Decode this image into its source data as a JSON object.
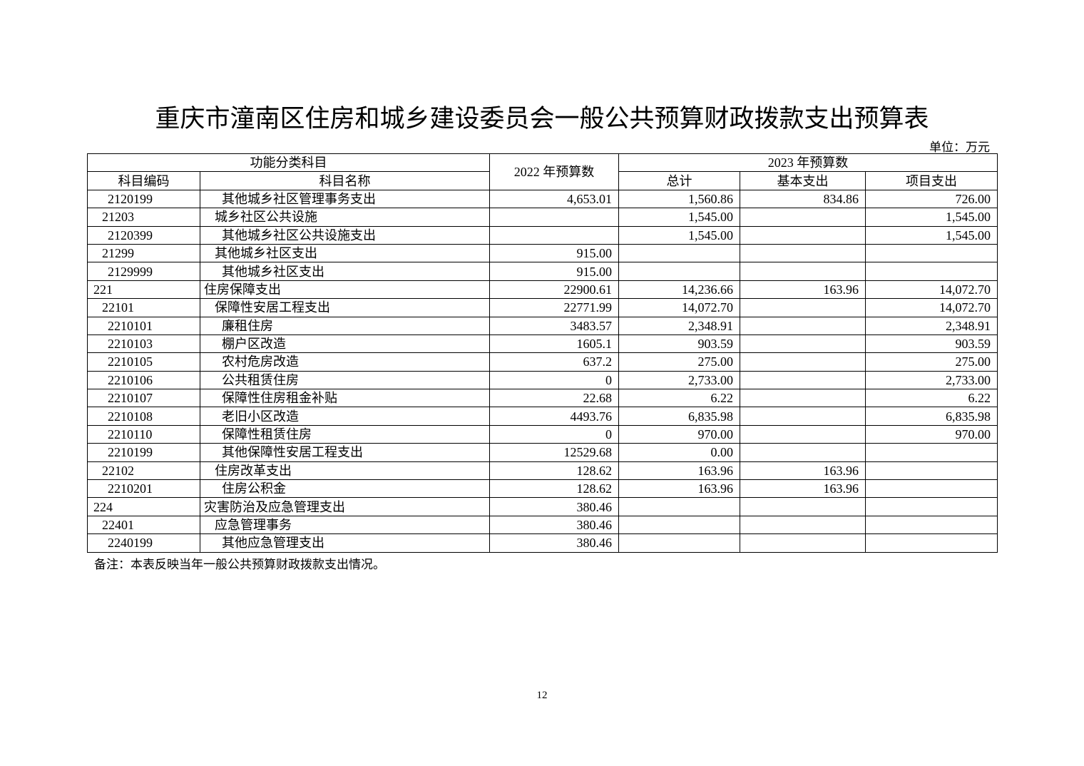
{
  "title": "重庆市潼南区住房和城乡建设委员会一般公共预算财政拨款支出预算表",
  "unit": "单位：万元",
  "headers": {
    "functional_category": "功能分类科目",
    "code": "科目编码",
    "name": "科目名称",
    "budget_2022": "2022 年预算数",
    "budget_2023": "2023 年预算数",
    "total": "总计",
    "basic": "基本支出",
    "project": "项目支出"
  },
  "rows": [
    {
      "level": 2,
      "code": "2120199",
      "name": "其他城乡社区管理事务支出",
      "b2022": "4,653.01",
      "total": "1,560.86",
      "basic": "834.86",
      "project": "726.00"
    },
    {
      "level": 1,
      "code": "21203",
      "name": "城乡社区公共设施",
      "b2022": "",
      "total": "1,545.00",
      "basic": "",
      "project": "1,545.00"
    },
    {
      "level": 2,
      "code": "2120399",
      "name": "其他城乡社区公共设施支出",
      "b2022": "",
      "total": "1,545.00",
      "basic": "",
      "project": "1,545.00"
    },
    {
      "level": 1,
      "code": "21299",
      "name": "其他城乡社区支出",
      "b2022": "915.00",
      "total": "",
      "basic": "",
      "project": ""
    },
    {
      "level": 2,
      "code": "2129999",
      "name": "其他城乡社区支出",
      "b2022": "915.00",
      "total": "",
      "basic": "",
      "project": ""
    },
    {
      "level": 0,
      "code": "221",
      "name": "住房保障支出",
      "b2022": "22900.61",
      "total": "14,236.66",
      "basic": "163.96",
      "project": "14,072.70"
    },
    {
      "level": 1,
      "code": "22101",
      "name": "保障性安居工程支出",
      "b2022": "22771.99",
      "total": "14,072.70",
      "basic": "",
      "project": "14,072.70"
    },
    {
      "level": 2,
      "code": "2210101",
      "name": "廉租住房",
      "b2022": "3483.57",
      "total": "2,348.91",
      "basic": "",
      "project": "2,348.91"
    },
    {
      "level": 2,
      "code": "2210103",
      "name": "棚户区改造",
      "b2022": "1605.1",
      "total": "903.59",
      "basic": "",
      "project": "903.59"
    },
    {
      "level": 2,
      "code": "2210105",
      "name": "农村危房改造",
      "b2022": "637.2",
      "total": "275.00",
      "basic": "",
      "project": "275.00"
    },
    {
      "level": 2,
      "code": "2210106",
      "name": "公共租赁住房",
      "b2022": "0",
      "total": "2,733.00",
      "basic": "",
      "project": "2,733.00"
    },
    {
      "level": 2,
      "code": "2210107",
      "name": "保障性住房租金补贴",
      "b2022": "22.68",
      "total": "6.22",
      "basic": "",
      "project": "6.22"
    },
    {
      "level": 2,
      "code": "2210108",
      "name": "老旧小区改造",
      "b2022": "4493.76",
      "total": "6,835.98",
      "basic": "",
      "project": "6,835.98"
    },
    {
      "level": 2,
      "code": "2210110",
      "name": "保障性租赁住房",
      "b2022": "0",
      "total": "970.00",
      "basic": "",
      "project": "970.00"
    },
    {
      "level": 2,
      "code": "2210199",
      "name": "其他保障性安居工程支出",
      "b2022": "12529.68",
      "total": "0.00",
      "basic": "",
      "project": ""
    },
    {
      "level": 1,
      "code": "22102",
      "name": "住房改革支出",
      "b2022": "128.62",
      "total": "163.96",
      "basic": "163.96",
      "project": ""
    },
    {
      "level": 2,
      "code": "2210201",
      "name": "住房公积金",
      "b2022": "128.62",
      "total": "163.96",
      "basic": "163.96",
      "project": ""
    },
    {
      "level": 0,
      "code": "224",
      "name": "灾害防治及应急管理支出",
      "b2022": "380.46",
      "total": "",
      "basic": "",
      "project": ""
    },
    {
      "level": 1,
      "code": "22401",
      "name": "应急管理事务",
      "b2022": "380.46",
      "total": "",
      "basic": "",
      "project": ""
    },
    {
      "level": 2,
      "code": "2240199",
      "name": "其他应急管理支出",
      "b2022": "380.46",
      "total": "",
      "basic": "",
      "project": ""
    }
  ],
  "note": "备注：本表反映当年一般公共预算财政拨款支出情况。",
  "page_number": "12"
}
